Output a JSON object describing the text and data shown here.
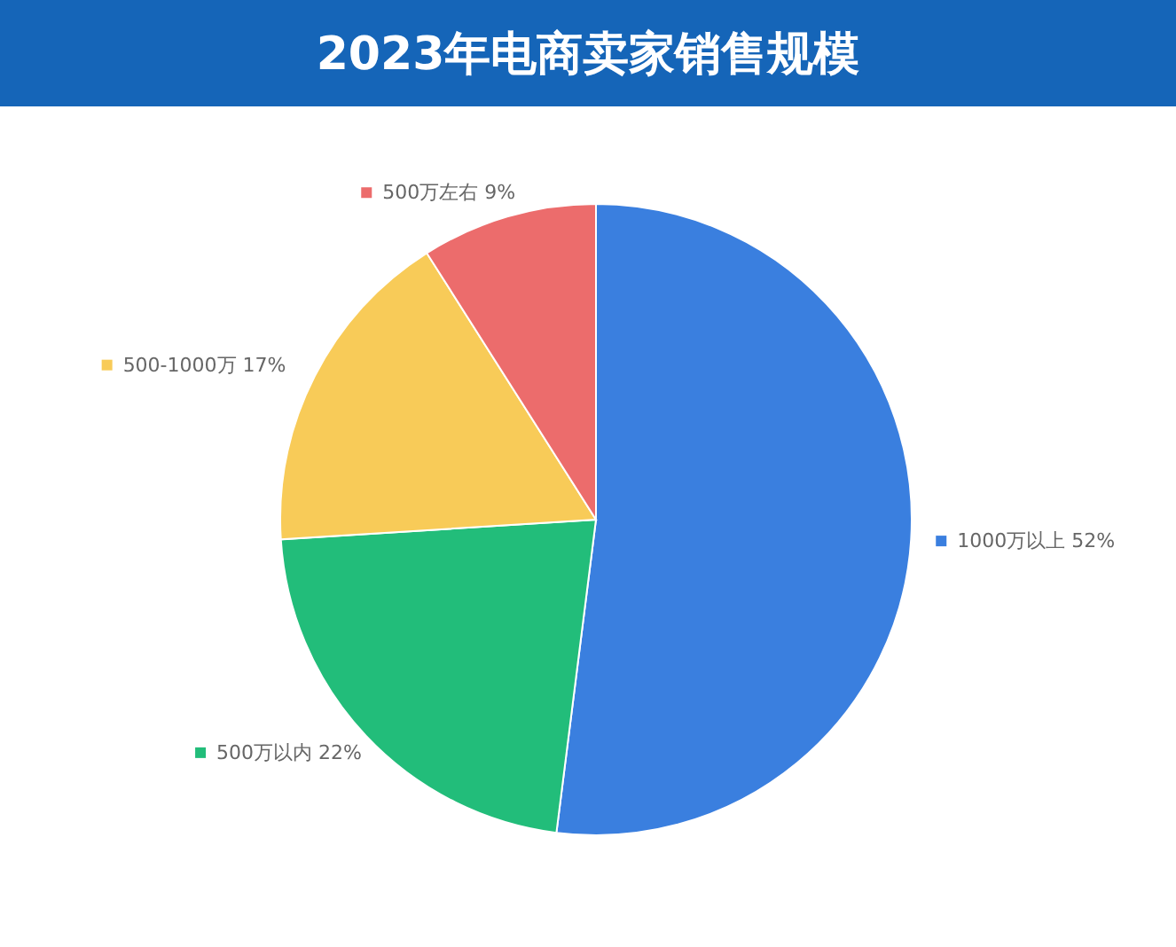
{
  "chart_data": {
    "type": "pie",
    "title": "2023年电商卖家销售规模",
    "categories": [
      "1000万以上",
      "500万以内",
      "500-1000万",
      "500万左右"
    ],
    "values": [
      52,
      22,
      17,
      9
    ],
    "value_labels": [
      "52%",
      "22%",
      "17%",
      "9%"
    ],
    "colors": [
      "#3a7fdf",
      "#22bd7a",
      "#f8cb58",
      "#ec6c6c"
    ],
    "legend": "right"
  }
}
